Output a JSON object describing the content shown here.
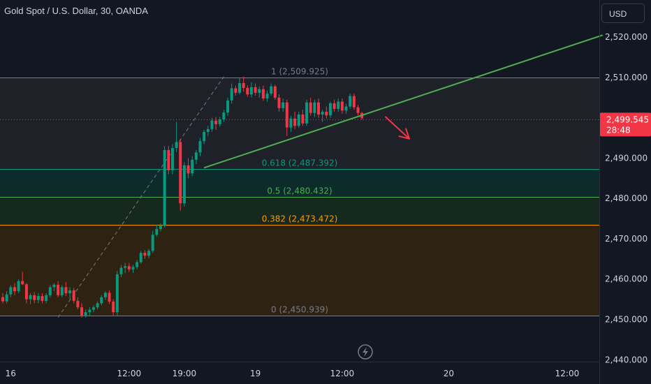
{
  "header": {
    "title": "Gold Spot / U.S. Dollar, 30, OANDA",
    "currency_button": "USD"
  },
  "price_tag": {
    "price": "2,499.545",
    "countdown": "28:48",
    "value": 2499.545,
    "color": "#f23645"
  },
  "chart_data": {
    "type": "candlestick",
    "y_axis": {
      "min": 2440,
      "max": 2520,
      "tick_values": [
        2440,
        2450,
        2460,
        2470,
        2480,
        2490,
        2500,
        2510,
        2520
      ],
      "tick_labels": [
        "2,440.000",
        "2,450.000",
        "2,460.000",
        "2,470.000",
        "2,480.000",
        "2,490.000",
        "2,500.000",
        "2,510.000",
        "2,520.000"
      ]
    },
    "x_axis": {
      "ticks": [
        {
          "label": "16",
          "slot": 2
        },
        {
          "label": "12:00",
          "slot": 32
        },
        {
          "label": "19:00",
          "slot": 46
        },
        {
          "label": "19",
          "slot": 64
        },
        {
          "label": "12:00",
          "slot": 86
        },
        {
          "label": "20",
          "slot": 113
        },
        {
          "label": "12:00",
          "slot": 143
        }
      ]
    },
    "fib_levels": [
      {
        "ratio": "1",
        "price": 2509.925,
        "label": "1 (2,509.925)",
        "color": "#787b86",
        "zone": "#1e2128"
      },
      {
        "ratio": "0.618",
        "price": 2487.392,
        "label": "0.618 (2,487.392)",
        "color": "#089981",
        "zone": "#0c2b2a"
      },
      {
        "ratio": "0.5",
        "price": 2480.432,
        "label": "0.5 (2,480.432)",
        "color": "#4caf50",
        "zone": "#16291e"
      },
      {
        "ratio": "0.382",
        "price": 2473.472,
        "label": "0.382 (2,473.472)",
        "color": "#ff9800",
        "zone": "#2e2312"
      },
      {
        "ratio": "0",
        "price": 2450.939,
        "label": "0 (2,450.939)",
        "color": "#787b86",
        "zone": ""
      }
    ],
    "trendline": {
      "color": "#4caf50",
      "start": {
        "slot": 51,
        "price": 2487.6
      },
      "end": {
        "slot": 152,
        "price": 2520.5
      }
    },
    "dashed_line": {
      "color": "#787b86",
      "start": {
        "slot": 14,
        "price": 2450.5
      },
      "end": {
        "slot": 56,
        "price": 2510.2
      }
    },
    "arrow": {
      "color": "#f23645",
      "start": {
        "slot": 97,
        "price": 2500.2
      },
      "end": {
        "slot": 103,
        "price": 2494.8
      }
    },
    "up_color": "#089981",
    "down_color": "#f23645",
    "candles": [
      [
        0,
        2455.5,
        2456.5,
        2454.0,
        2454.5
      ],
      [
        1,
        2454.5,
        2457.0,
        2454.0,
        2456.2
      ],
      [
        2,
        2456.2,
        2458.5,
        2455.5,
        2458.0
      ],
      [
        3,
        2458.0,
        2459.0,
        2456.0,
        2457.0
      ],
      [
        4,
        2457.0,
        2460.0,
        2456.5,
        2459.5
      ],
      [
        5,
        2459.5,
        2461.8,
        2458.5,
        2458.7
      ],
      [
        6,
        2458.7,
        2459.0,
        2454.0,
        2455.0
      ],
      [
        7,
        2455.0,
        2456.5,
        2453.8,
        2456.0
      ],
      [
        8,
        2456.0,
        2456.8,
        2454.0,
        2454.8
      ],
      [
        9,
        2454.8,
        2456.5,
        2454.0,
        2455.8
      ],
      [
        10,
        2455.8,
        2456.5,
        2454.0,
        2454.6
      ],
      [
        11,
        2454.6,
        2456.5,
        2454.0,
        2456.0
      ],
      [
        12,
        2456.0,
        2458.5,
        2455.5,
        2458.0
      ],
      [
        13,
        2458.0,
        2459.0,
        2457.0,
        2458.6
      ],
      [
        14,
        2458.6,
        2459.5,
        2455.5,
        2456.0
      ],
      [
        15,
        2456.0,
        2458.5,
        2455.5,
        2458.0
      ],
      [
        16,
        2458.0,
        2459.2,
        2455.8,
        2456.5
      ],
      [
        17,
        2456.5,
        2458.0,
        2455.0,
        2457.2
      ],
      [
        18,
        2457.2,
        2457.8,
        2454.0,
        2454.6
      ],
      [
        19,
        2454.6,
        2455.5,
        2452.5,
        2453.0
      ],
      [
        20,
        2453.0,
        2454.0,
        2450.5,
        2451.0
      ],
      [
        21,
        2451.0,
        2452.5,
        2450.5,
        2451.8
      ],
      [
        22,
        2451.8,
        2453.0,
        2451.0,
        2452.4
      ],
      [
        23,
        2452.4,
        2453.5,
        2451.8,
        2453.0
      ],
      [
        24,
        2453.0,
        2454.5,
        2452.5,
        2454.0
      ],
      [
        25,
        2454.0,
        2456.0,
        2453.5,
        2455.5
      ],
      [
        26,
        2455.5,
        2457.0,
        2454.8,
        2456.6
      ],
      [
        27,
        2456.6,
        2457.2,
        2453.8,
        2454.4
      ],
      [
        28,
        2454.4,
        2455.0,
        2451.0,
        2451.8
      ],
      [
        29,
        2451.8,
        2462.0,
        2451.0,
        2461.2
      ],
      [
        30,
        2461.2,
        2463.5,
        2460.5,
        2462.8
      ],
      [
        31,
        2462.8,
        2464.0,
        2461.5,
        2463.2
      ],
      [
        32,
        2463.2,
        2464.0,
        2461.8,
        2462.4
      ],
      [
        33,
        2462.4,
        2463.5,
        2461.5,
        2463.0
      ],
      [
        34,
        2463.0,
        2464.8,
        2462.5,
        2464.2
      ],
      [
        35,
        2464.2,
        2467.0,
        2463.8,
        2466.5
      ],
      [
        36,
        2466.5,
        2467.2,
        2465.0,
        2465.8
      ],
      [
        37,
        2465.8,
        2467.5,
        2465.2,
        2467.0
      ],
      [
        38,
        2467.0,
        2472.0,
        2466.5,
        2471.0
      ],
      [
        39,
        2471.0,
        2473.5,
        2470.5,
        2472.4
      ],
      [
        40,
        2472.4,
        2473.8,
        2471.8,
        2473.2
      ],
      [
        41,
        2473.2,
        2493.0,
        2472.8,
        2492.0
      ],
      [
        42,
        2492.0,
        2493.0,
        2486.0,
        2487.0
      ],
      [
        43,
        2487.0,
        2493.5,
        2486.0,
        2492.5
      ],
      [
        44,
        2492.5,
        2499.0,
        2491.5,
        2494.0
      ],
      [
        45,
        2494.0,
        2494.8,
        2477.0,
        2478.8
      ],
      [
        46,
        2478.8,
        2489.0,
        2478.0,
        2488.2
      ],
      [
        47,
        2488.2,
        2490.0,
        2485.0,
        2486.2
      ],
      [
        48,
        2486.2,
        2490.5,
        2485.5,
        2489.6
      ],
      [
        49,
        2489.6,
        2492.0,
        2488.5,
        2491.4
      ],
      [
        50,
        2491.4,
        2495.0,
        2490.5,
        2494.2
      ],
      [
        51,
        2494.2,
        2497.0,
        2493.5,
        2496.5
      ],
      [
        52,
        2496.5,
        2498.0,
        2495.5,
        2497.2
      ],
      [
        53,
        2497.2,
        2500.0,
        2496.5,
        2499.3
      ],
      [
        54,
        2499.3,
        2500.2,
        2497.0,
        2498.4
      ],
      [
        55,
        2498.4,
        2500.2,
        2497.8,
        2499.6
      ],
      [
        56,
        2499.6,
        2502.0,
        2499.0,
        2501.3
      ],
      [
        57,
        2501.3,
        2505.0,
        2500.5,
        2504.3
      ],
      [
        58,
        2504.3,
        2508.5,
        2503.5,
        2507.3
      ],
      [
        59,
        2507.3,
        2508.0,
        2505.5,
        2506.2
      ],
      [
        60,
        2506.2,
        2510.0,
        2505.8,
        2508.6
      ],
      [
        61,
        2508.6,
        2510.2,
        2506.5,
        2507.4
      ],
      [
        62,
        2507.4,
        2508.0,
        2505.2,
        2505.8
      ],
      [
        63,
        2505.8,
        2508.8,
        2505.0,
        2507.6
      ],
      [
        64,
        2507.6,
        2508.5,
        2505.5,
        2506.2
      ],
      [
        65,
        2506.2,
        2507.8,
        2505.0,
        2507.1
      ],
      [
        66,
        2507.1,
        2508.0,
        2504.2,
        2504.8
      ],
      [
        67,
        2504.8,
        2506.8,
        2504.0,
        2506.0
      ],
      [
        68,
        2506.0,
        2508.5,
        2505.5,
        2507.8
      ],
      [
        69,
        2507.8,
        2508.2,
        2504.5,
        2505.0
      ],
      [
        70,
        2505.0,
        2505.8,
        2501.5,
        2502.4
      ],
      [
        71,
        2502.4,
        2504.8,
        2501.5,
        2503.8
      ],
      [
        72,
        2503.8,
        2504.5,
        2495.5,
        2497.6
      ],
      [
        73,
        2497.6,
        2500.5,
        2496.5,
        2499.8
      ],
      [
        74,
        2499.8,
        2501.5,
        2497.2,
        2498.0
      ],
      [
        75,
        2498.0,
        2501.5,
        2497.5,
        2500.8
      ],
      [
        76,
        2500.8,
        2502.0,
        2498.0,
        2498.6
      ],
      [
        77,
        2498.6,
        2504.5,
        2498.0,
        2503.8
      ],
      [
        78,
        2503.8,
        2505.0,
        2500.5,
        2501.2
      ],
      [
        79,
        2501.2,
        2504.5,
        2500.2,
        2503.8
      ],
      [
        80,
        2503.8,
        2504.8,
        2500.0,
        2500.8
      ],
      [
        81,
        2500.8,
        2502.0,
        2499.0,
        2501.5
      ],
      [
        82,
        2501.5,
        2502.8,
        2499.8,
        2500.6
      ],
      [
        83,
        2500.6,
        2504.0,
        2500.0,
        2503.6
      ],
      [
        84,
        2503.6,
        2504.5,
        2501.5,
        2502.2
      ],
      [
        85,
        2502.2,
        2504.8,
        2501.5,
        2504.0
      ],
      [
        86,
        2504.0,
        2504.8,
        2501.0,
        2501.8
      ],
      [
        87,
        2501.8,
        2503.5,
        2501.0,
        2502.8
      ],
      [
        88,
        2502.8,
        2506.0,
        2502.2,
        2505.4
      ],
      [
        89,
        2505.4,
        2506.0,
        2502.0,
        2502.6
      ],
      [
        90,
        2502.6,
        2503.2,
        2500.6,
        2501.2
      ],
      [
        91,
        2501.2,
        2501.5,
        2499.5,
        2499.9
      ]
    ]
  }
}
